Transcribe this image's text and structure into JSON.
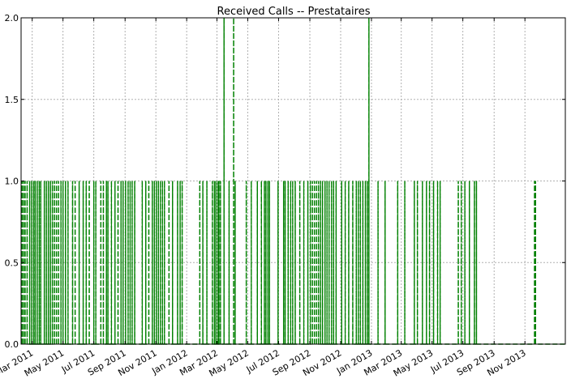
{
  "chart_data": {
    "type": "line",
    "title": "Received Calls -- Prestataires",
    "xlabel": "",
    "ylabel": "",
    "x_axis": {
      "type": "date",
      "range": [
        "2011-02-07",
        "2014-01-20"
      ],
      "tick_labels": [
        "Mar 2011",
        "May 2011",
        "Jul 2011",
        "Sep 2011",
        "Nov 2011",
        "Jan 2012",
        "Mar 2012",
        "May 2012",
        "Jul 2012",
        "Sep 2012",
        "Nov 2012",
        "Jan 2013",
        "Mar 2013",
        "May 2013",
        "Jul 2013",
        "Sep 2013",
        "Nov 2013"
      ],
      "tick_dates": [
        "2011-03-01",
        "2011-05-01",
        "2011-07-01",
        "2011-09-01",
        "2011-11-01",
        "2012-01-01",
        "2012-03-01",
        "2012-05-01",
        "2012-07-01",
        "2012-09-01",
        "2012-11-01",
        "2013-01-01",
        "2013-03-01",
        "2013-05-01",
        "2013-07-01",
        "2013-09-01",
        "2013-11-01"
      ]
    },
    "y_axis": {
      "range": [
        0,
        2
      ],
      "ticks": [
        0.0,
        0.5,
        1.0,
        1.5,
        2.0
      ],
      "tick_labels": [
        "0.0",
        "0.5",
        "1.0",
        "1.5",
        "2.0"
      ]
    },
    "grid": true,
    "line_color": "#008000",
    "line_style": "dashed",
    "series": [
      {
        "points": [
          {
            "date": "2011-02-09",
            "value": 1
          },
          {
            "date": "2011-02-12",
            "value": 1
          },
          {
            "date": "2011-02-15",
            "value": 1
          },
          {
            "date": "2011-02-19",
            "value": 1
          },
          {
            "date": "2011-02-24",
            "value": 1
          },
          {
            "date": "2011-02-28",
            "value": 1
          },
          {
            "date": "2011-03-04",
            "value": 1
          },
          {
            "date": "2011-03-07",
            "value": 1
          },
          {
            "date": "2011-03-11",
            "value": 1
          },
          {
            "date": "2011-03-15",
            "value": 1
          },
          {
            "date": "2011-03-18",
            "value": 1
          },
          {
            "date": "2011-03-25",
            "value": 1
          },
          {
            "date": "2011-03-29",
            "value": 1
          },
          {
            "date": "2011-04-02",
            "value": 1
          },
          {
            "date": "2011-04-06",
            "value": 1
          },
          {
            "date": "2011-04-10",
            "value": 1
          },
          {
            "date": "2011-04-14",
            "value": 1
          },
          {
            "date": "2011-04-18",
            "value": 1
          },
          {
            "date": "2011-04-22",
            "value": 1
          },
          {
            "date": "2011-04-27",
            "value": 1
          },
          {
            "date": "2011-05-01",
            "value": 1
          },
          {
            "date": "2011-05-06",
            "value": 1
          },
          {
            "date": "2011-05-11",
            "value": 1
          },
          {
            "date": "2011-05-20",
            "value": 1
          },
          {
            "date": "2011-05-25",
            "value": 1
          },
          {
            "date": "2011-06-02",
            "value": 1
          },
          {
            "date": "2011-06-10",
            "value": 1
          },
          {
            "date": "2011-06-16",
            "value": 1
          },
          {
            "date": "2011-06-22",
            "value": 1
          },
          {
            "date": "2011-07-01",
            "value": 1
          },
          {
            "date": "2011-07-05",
            "value": 1
          },
          {
            "date": "2011-07-15",
            "value": 1
          },
          {
            "date": "2011-07-20",
            "value": 1
          },
          {
            "date": "2011-07-26",
            "value": 1
          },
          {
            "date": "2011-07-29",
            "value": 1
          },
          {
            "date": "2011-08-05",
            "value": 1
          },
          {
            "date": "2011-08-12",
            "value": 1
          },
          {
            "date": "2011-08-18",
            "value": 1
          },
          {
            "date": "2011-08-24",
            "value": 1
          },
          {
            "date": "2011-08-28",
            "value": 1
          },
          {
            "date": "2011-09-02",
            "value": 1
          },
          {
            "date": "2011-09-07",
            "value": 1
          },
          {
            "date": "2011-09-11",
            "value": 1
          },
          {
            "date": "2011-09-15",
            "value": 1
          },
          {
            "date": "2011-09-20",
            "value": 1
          },
          {
            "date": "2011-10-05",
            "value": 1
          },
          {
            "date": "2011-10-12",
            "value": 1
          },
          {
            "date": "2011-10-18",
            "value": 1
          },
          {
            "date": "2011-10-25",
            "value": 1
          },
          {
            "date": "2011-10-29",
            "value": 1
          },
          {
            "date": "2011-11-02",
            "value": 1
          },
          {
            "date": "2011-11-06",
            "value": 1
          },
          {
            "date": "2011-11-10",
            "value": 1
          },
          {
            "date": "2011-11-14",
            "value": 1
          },
          {
            "date": "2011-11-18",
            "value": 1
          },
          {
            "date": "2011-11-27",
            "value": 1
          },
          {
            "date": "2011-12-04",
            "value": 1
          },
          {
            "date": "2011-12-14",
            "value": 1
          },
          {
            "date": "2011-12-19",
            "value": 1
          },
          {
            "date": "2011-12-23",
            "value": 1
          },
          {
            "date": "2012-01-27",
            "value": 1
          },
          {
            "date": "2012-02-02",
            "value": 1
          },
          {
            "date": "2012-02-10",
            "value": 1
          },
          {
            "date": "2012-02-21",
            "value": 1
          },
          {
            "date": "2012-02-25",
            "value": 1
          },
          {
            "date": "2012-02-28",
            "value": 1
          },
          {
            "date": "2012-03-03",
            "value": 1
          },
          {
            "date": "2012-03-05",
            "value": 1
          },
          {
            "date": "2012-03-08",
            "value": 1
          },
          {
            "date": "2012-03-15",
            "value": 2
          },
          {
            "date": "2012-03-25",
            "value": 1
          },
          {
            "date": "2012-04-03",
            "value": 2
          },
          {
            "date": "2012-04-06",
            "value": 1
          },
          {
            "date": "2012-04-28",
            "value": 1
          },
          {
            "date": "2012-05-08",
            "value": 1
          },
          {
            "date": "2012-05-20",
            "value": 1
          },
          {
            "date": "2012-05-28",
            "value": 1
          },
          {
            "date": "2012-06-03",
            "value": 1
          },
          {
            "date": "2012-06-06",
            "value": 1
          },
          {
            "date": "2012-06-10",
            "value": 1
          },
          {
            "date": "2012-06-13",
            "value": 1
          },
          {
            "date": "2012-06-30",
            "value": 1
          },
          {
            "date": "2012-07-11",
            "value": 1
          },
          {
            "date": "2012-07-14",
            "value": 1
          },
          {
            "date": "2012-07-20",
            "value": 1
          },
          {
            "date": "2012-07-25",
            "value": 1
          },
          {
            "date": "2012-07-29",
            "value": 1
          },
          {
            "date": "2012-08-03",
            "value": 1
          },
          {
            "date": "2012-08-12",
            "value": 1
          },
          {
            "date": "2012-08-20",
            "value": 1
          },
          {
            "date": "2012-08-28",
            "value": 1
          },
          {
            "date": "2012-09-02",
            "value": 1
          },
          {
            "date": "2012-09-06",
            "value": 1
          },
          {
            "date": "2012-09-10",
            "value": 1
          },
          {
            "date": "2012-09-14",
            "value": 1
          },
          {
            "date": "2012-09-18",
            "value": 1
          },
          {
            "date": "2012-09-22",
            "value": 1
          },
          {
            "date": "2012-09-26",
            "value": 1
          },
          {
            "date": "2012-10-01",
            "value": 1
          },
          {
            "date": "2012-10-05",
            "value": 1
          },
          {
            "date": "2012-10-09",
            "value": 1
          },
          {
            "date": "2012-10-14",
            "value": 1
          },
          {
            "date": "2012-10-18",
            "value": 1
          },
          {
            "date": "2012-10-23",
            "value": 1
          },
          {
            "date": "2012-11-03",
            "value": 1
          },
          {
            "date": "2012-11-10",
            "value": 1
          },
          {
            "date": "2012-11-17",
            "value": 1
          },
          {
            "date": "2012-11-25",
            "value": 1
          },
          {
            "date": "2012-12-02",
            "value": 1
          },
          {
            "date": "2012-12-06",
            "value": 1
          },
          {
            "date": "2012-12-10",
            "value": 1
          },
          {
            "date": "2012-12-15",
            "value": 1
          },
          {
            "date": "2012-12-20",
            "value": 1
          },
          {
            "date": "2012-12-24",
            "value": 1
          },
          {
            "date": "2012-12-27",
            "value": 2
          },
          {
            "date": "2013-01-14",
            "value": 1
          },
          {
            "date": "2013-01-28",
            "value": 1
          },
          {
            "date": "2013-02-22",
            "value": 1
          },
          {
            "date": "2013-03-08",
            "value": 1
          },
          {
            "date": "2013-03-27",
            "value": 1
          },
          {
            "date": "2013-04-02",
            "value": 1
          },
          {
            "date": "2013-04-12",
            "value": 1
          },
          {
            "date": "2013-04-20",
            "value": 1
          },
          {
            "date": "2013-04-26",
            "value": 1
          },
          {
            "date": "2013-05-04",
            "value": 1
          },
          {
            "date": "2013-05-12",
            "value": 1
          },
          {
            "date": "2013-05-17",
            "value": 1
          },
          {
            "date": "2013-06-22",
            "value": 1
          },
          {
            "date": "2013-06-28",
            "value": 1
          },
          {
            "date": "2013-07-05",
            "value": 1
          },
          {
            "date": "2013-07-14",
            "value": 1
          },
          {
            "date": "2013-07-24",
            "value": 1
          },
          {
            "date": "2013-07-28",
            "value": 1
          },
          {
            "date": "2013-11-20",
            "value": 1
          },
          {
            "date": "2013-11-22",
            "value": 1
          }
        ]
      }
    ]
  }
}
